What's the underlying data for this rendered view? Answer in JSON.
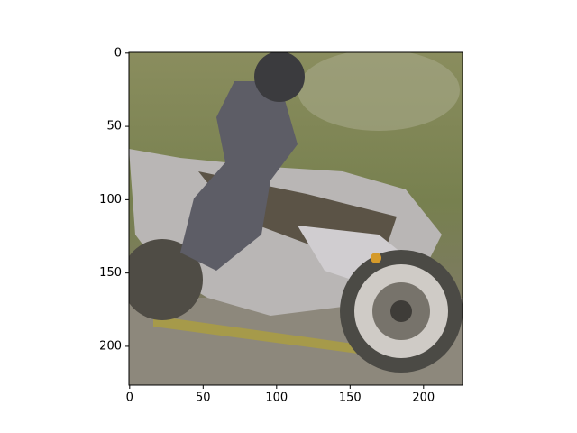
{
  "chart_data": {
    "type": "image",
    "xlim": [
      -0.5,
      226.5
    ],
    "ylim": [
      226.5,
      -0.5
    ],
    "xticks": [
      0,
      50,
      100,
      150,
      200
    ],
    "yticks": [
      0,
      50,
      100,
      150,
      200
    ]
  }
}
